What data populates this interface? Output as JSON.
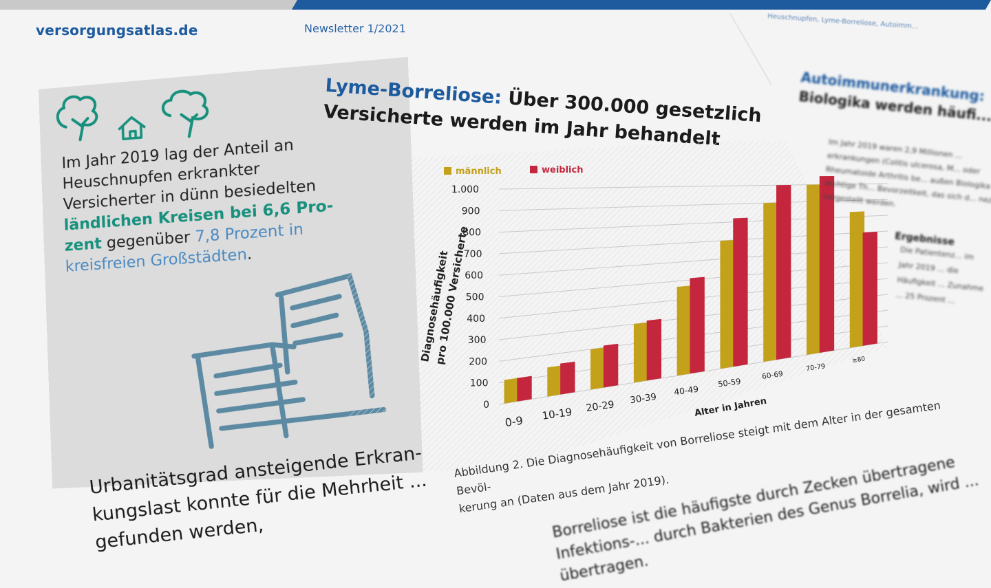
{
  "header": {
    "site": "versorgungsatlas.de",
    "newsletter": "Newsletter 1/2021",
    "nav_small": "Heuschnupfen, Lyme-Borreliose, Autoimm..."
  },
  "infobox": {
    "text_1": "Im Jahr 2019 lag der Anteil an Heuschnupfen erkrankter Versicherter in dünn besiedelten ",
    "highlight_green": "ländlichen Kreisen bei 6,6 Pro-zent",
    "text_2": " gegenüber ",
    "highlight_blue": "7,8 Prozent in kreisfreien Großstädten",
    "text_3": ".",
    "icons": [
      "tree-icon",
      "house-icon",
      "tree-icon",
      "city-buildings-icon"
    ],
    "colors": {
      "green": "#17907d",
      "blue": "#4b8ac2",
      "background": "#dcdcdc"
    }
  },
  "article": {
    "headline_accent": "Lyme-Borreliose:",
    "headline_rest": " Über 300.000 gesetzlich Versicherte werden im Jahr behandelt",
    "caption_line1": "Abbildung 2. Die Diagnosehäufigkeit von Borreliose steigt mit dem Alter in der gesamten Bevöl-",
    "caption_line2": "kerung an (Daten aus dem Jahr 2019).",
    "body_left": "Urbanitätsgrad ansteigende Erkran-kungslast konnte für die Mehrheit ... gefunden werden,",
    "body_right": "Borreliose ist die häufigste durch Zecken übertragene Infektions-... durch Bakterien des Genus Borrelia, wird ... übertragen."
  },
  "right_column": {
    "title_1": "Autoimmunerkrankung:",
    "title_2": "Biologika werden häufi...",
    "body": "Im Jahr 2019 waren 2,9 Millionen ... erkrankungen (Colitis ulcerosa, M... oder Rheumatoide Arthritis be... außen Biologika wichtige Th... Bevorzeitkeit, das sich d... nez hergestellt werden.",
    "subhead": "Ergebnisse",
    "sub_body": "Die Patientenz... im Jahr 2019 ... die Häufigkeit ... Zunahme ... 25 Prozent ..."
  },
  "chart_data": {
    "type": "bar",
    "categories": [
      "0-9",
      "10-19",
      "20-29",
      "30-39",
      "40-49",
      "50-59",
      "60-69",
      "70-79",
      "≥80"
    ],
    "series": [
      {
        "name": "männlich",
        "color": "#c4a11a",
        "values": [
          110,
          140,
          200,
          300,
          470,
          700,
          900,
          1000,
          830
        ]
      },
      {
        "name": "weiblich",
        "color": "#c4263d",
        "values": [
          110,
          150,
          210,
          310,
          510,
          820,
          1000,
          1050,
          700
        ]
      }
    ],
    "ylabel": "Diagnosehäufigkeit pro 100.000 Versicherte",
    "xlabel": "Alter in Jahren",
    "ylim": [
      0,
      1000
    ],
    "yticks": [
      0,
      100,
      200,
      300,
      400,
      500,
      600,
      700,
      800,
      900,
      "1.000"
    ],
    "grid": true,
    "legend": "top-left",
    "style": "3d-perspective"
  }
}
